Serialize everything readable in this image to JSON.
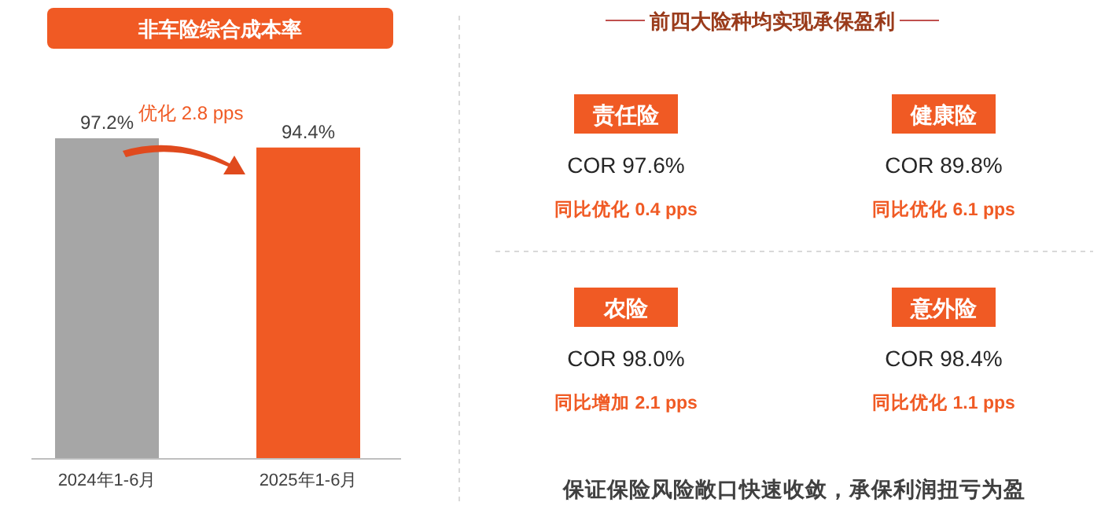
{
  "chart_data": [
    {
      "type": "bar",
      "title": "非车险综合成本率",
      "categories": [
        "2024年1-6月",
        "2025年1-6月"
      ],
      "values": [
        97.2,
        94.4
      ],
      "colors": [
        "#a6a6a6",
        "#f05a24"
      ],
      "data_labels": true,
      "value_labels": [
        "97.2%",
        "94.4%"
      ],
      "annotations": [
        "优化 2.8 pps"
      ]
    },
    {
      "type": "other",
      "title": "前四大险种均实现承保盈利",
      "categories": [
        "责任险",
        "健康险",
        "农险",
        "意外险"
      ],
      "value_labels": [
        "COR 97.6%",
        "COR 89.8%",
        "COR 98.0%",
        "COR 98.4%"
      ],
      "annotations": [
        "同比优化 0.4 pps",
        "同比优化 6.1 pps",
        "同比增加 2.1 pps",
        "同比优化 1.1 pps",
        "保证保险风险敞口快速收敛，承保利润扭亏为盈"
      ]
    }
  ]
}
